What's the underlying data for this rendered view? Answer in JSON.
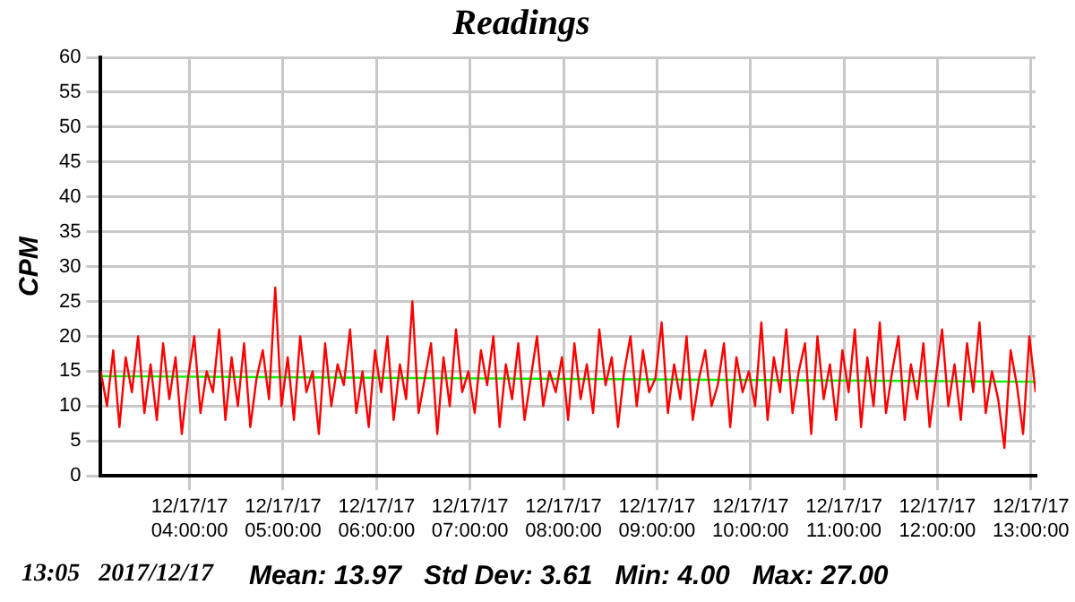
{
  "chart_data": {
    "type": "line",
    "title": "Readings",
    "ylabel": "CPM",
    "marker": "none",
    "grid": true,
    "legend": false,
    "xlim": [
      "2017-12-17T03:03",
      "2017-12-17T13:03"
    ],
    "xticks": [
      {
        "value": "2017-12-17T04:00",
        "label": "12/17/17 04:00:00"
      },
      {
        "value": "2017-12-17T05:00",
        "label": "12/17/17 05:00:00"
      },
      {
        "value": "2017-12-17T06:00",
        "label": "12/17/17 06:00:00"
      },
      {
        "value": "2017-12-17T07:00",
        "label": "12/17/17 07:00:00"
      },
      {
        "value": "2017-12-17T08:00",
        "label": "12/17/17 08:00:00"
      },
      {
        "value": "2017-12-17T09:00",
        "label": "12/17/17 09:00:00"
      },
      {
        "value": "2017-12-17T10:00",
        "label": "12/17/17 10:00:00"
      },
      {
        "value": "2017-12-17T11:00",
        "label": "12/17/17 11:00:00"
      },
      {
        "value": "2017-12-17T12:00",
        "label": "12/17/17 12:00:00"
      },
      {
        "value": "2017-12-17T13:00",
        "label": "12/17/17 13:00:00"
      }
    ],
    "ylim": [
      0,
      60
    ],
    "yticks": [
      0,
      5,
      10,
      15,
      20,
      25,
      30,
      35,
      40,
      45,
      50,
      55,
      60
    ],
    "series": [
      {
        "color": "#ff0000",
        "x": [
          "2017-12-17T03:03",
          "2017-12-17T03:07",
          "2017-12-17T03:11",
          "2017-12-17T03:15",
          "2017-12-17T03:19",
          "2017-12-17T03:23",
          "2017-12-17T03:27",
          "2017-12-17T03:31",
          "2017-12-17T03:35",
          "2017-12-17T03:39",
          "2017-12-17T03:43",
          "2017-12-17T03:47",
          "2017-12-17T03:51",
          "2017-12-17T03:55",
          "2017-12-17T03:59",
          "2017-12-17T04:03",
          "2017-12-17T04:07",
          "2017-12-17T04:11",
          "2017-12-17T04:15",
          "2017-12-17T04:19",
          "2017-12-17T04:23",
          "2017-12-17T04:27",
          "2017-12-17T04:31",
          "2017-12-17T04:35",
          "2017-12-17T04:39",
          "2017-12-17T04:43",
          "2017-12-17T04:47",
          "2017-12-17T04:51",
          "2017-12-17T04:55",
          "2017-12-17T04:59",
          "2017-12-17T05:03",
          "2017-12-17T05:07",
          "2017-12-17T05:11",
          "2017-12-17T05:15",
          "2017-12-17T05:19",
          "2017-12-17T05:23",
          "2017-12-17T05:27",
          "2017-12-17T05:31",
          "2017-12-17T05:35",
          "2017-12-17T05:39",
          "2017-12-17T05:43",
          "2017-12-17T05:47",
          "2017-12-17T05:51",
          "2017-12-17T05:55",
          "2017-12-17T05:59",
          "2017-12-17T06:03",
          "2017-12-17T06:07",
          "2017-12-17T06:11",
          "2017-12-17T06:15",
          "2017-12-17T06:19",
          "2017-12-17T06:23",
          "2017-12-17T06:27",
          "2017-12-17T06:31",
          "2017-12-17T06:35",
          "2017-12-17T06:39",
          "2017-12-17T06:43",
          "2017-12-17T06:47",
          "2017-12-17T06:51",
          "2017-12-17T06:55",
          "2017-12-17T06:59",
          "2017-12-17T07:03",
          "2017-12-17T07:07",
          "2017-12-17T07:11",
          "2017-12-17T07:15",
          "2017-12-17T07:19",
          "2017-12-17T07:23",
          "2017-12-17T07:27",
          "2017-12-17T07:31",
          "2017-12-17T07:35",
          "2017-12-17T07:39",
          "2017-12-17T07:43",
          "2017-12-17T07:47",
          "2017-12-17T07:51",
          "2017-12-17T07:55",
          "2017-12-17T07:59",
          "2017-12-17T08:03",
          "2017-12-17T08:07",
          "2017-12-17T08:11",
          "2017-12-17T08:15",
          "2017-12-17T08:19",
          "2017-12-17T08:23",
          "2017-12-17T08:27",
          "2017-12-17T08:31",
          "2017-12-17T08:35",
          "2017-12-17T08:39",
          "2017-12-17T08:43",
          "2017-12-17T08:47",
          "2017-12-17T08:51",
          "2017-12-17T08:55",
          "2017-12-17T08:59",
          "2017-12-17T09:03",
          "2017-12-17T09:07",
          "2017-12-17T09:11",
          "2017-12-17T09:15",
          "2017-12-17T09:19",
          "2017-12-17T09:23",
          "2017-12-17T09:27",
          "2017-12-17T09:31",
          "2017-12-17T09:35",
          "2017-12-17T09:39",
          "2017-12-17T09:43",
          "2017-12-17T09:47",
          "2017-12-17T09:51",
          "2017-12-17T09:55",
          "2017-12-17T09:59",
          "2017-12-17T10:03",
          "2017-12-17T10:07",
          "2017-12-17T10:11",
          "2017-12-17T10:15",
          "2017-12-17T10:19",
          "2017-12-17T10:23",
          "2017-12-17T10:27",
          "2017-12-17T10:31",
          "2017-12-17T10:35",
          "2017-12-17T10:39",
          "2017-12-17T10:43",
          "2017-12-17T10:47",
          "2017-12-17T10:51",
          "2017-12-17T10:55",
          "2017-12-17T10:59",
          "2017-12-17T11:03",
          "2017-12-17T11:07",
          "2017-12-17T11:11",
          "2017-12-17T11:15",
          "2017-12-17T11:19",
          "2017-12-17T11:23",
          "2017-12-17T11:27",
          "2017-12-17T11:31",
          "2017-12-17T11:35",
          "2017-12-17T11:39",
          "2017-12-17T11:43",
          "2017-12-17T11:47",
          "2017-12-17T11:51",
          "2017-12-17T11:55",
          "2017-12-17T11:59",
          "2017-12-17T12:03",
          "2017-12-17T12:07",
          "2017-12-17T12:11",
          "2017-12-17T12:15",
          "2017-12-17T12:19",
          "2017-12-17T12:23",
          "2017-12-17T12:27",
          "2017-12-17T12:31",
          "2017-12-17T12:35",
          "2017-12-17T12:39",
          "2017-12-17T12:43",
          "2017-12-17T12:47",
          "2017-12-17T12:51",
          "2017-12-17T12:55",
          "2017-12-17T12:59",
          "2017-12-17T13:03"
        ],
        "values": [
          15,
          10,
          18,
          7,
          17,
          12,
          20,
          9,
          16,
          8,
          19,
          11,
          17,
          6,
          14,
          20,
          9,
          15,
          12,
          21,
          8,
          17,
          10,
          19,
          7,
          14,
          18,
          11,
          27,
          10,
          17,
          8,
          20,
          12,
          15,
          6,
          19,
          10,
          16,
          13,
          21,
          9,
          15,
          7,
          18,
          12,
          20,
          8,
          16,
          11,
          25,
          9,
          14,
          19,
          6,
          17,
          10,
          21,
          12,
          15,
          9,
          18,
          13,
          20,
          7,
          16,
          11,
          19,
          8,
          14,
          20,
          10,
          15,
          12,
          17,
          8,
          19,
          11,
          16,
          9,
          21,
          13,
          17,
          7,
          15,
          20,
          10,
          18,
          12,
          14,
          22,
          9,
          16,
          11,
          20,
          8,
          14,
          18,
          10,
          13,
          19,
          7,
          17,
          12,
          15,
          10,
          22,
          8,
          17,
          12,
          21,
          9,
          15,
          19,
          6,
          20,
          11,
          16,
          8,
          18,
          12,
          21,
          7,
          17,
          10,
          22,
          9,
          15,
          20,
          8,
          16,
          11,
          19,
          7,
          14,
          21,
          10,
          16,
          8,
          19,
          12,
          22,
          9,
          15,
          11,
          4,
          18,
          13,
          6,
          20,
          12
        ]
      },
      {
        "color": "#00ff00",
        "x": [
          "2017-12-17T03:03",
          "2017-12-17T13:03"
        ],
        "values": [
          14.3,
          13.5
        ]
      }
    ],
    "annotations": [
      "13:05   2017/12/17",
      "Mean: 13.97   Std Dev: 3.61   Min: 4.00   Max: 27.00"
    ]
  }
}
